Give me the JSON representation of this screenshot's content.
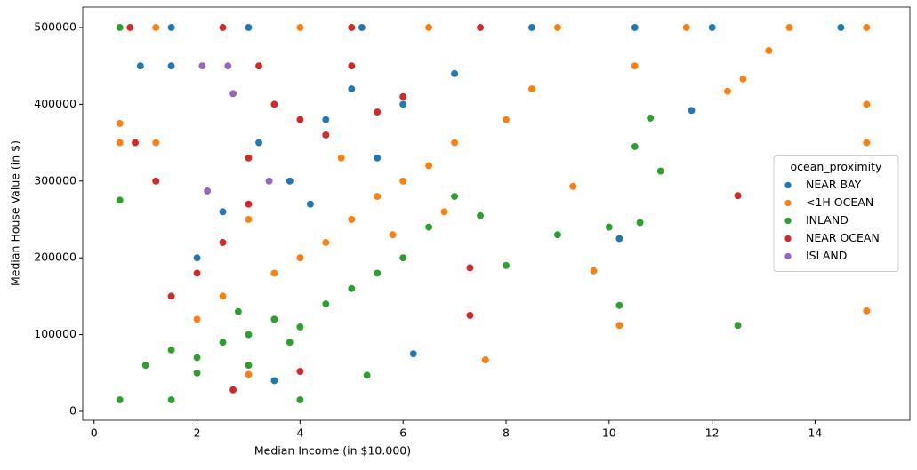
{
  "chart_data": {
    "type": "scatter",
    "x_label": "Median Income (in $10.000)",
    "y_label": "Median House Value (in $)",
    "xlim": [
      -0.22,
      15.84
    ],
    "ylim": [
      -11600,
      526600
    ],
    "xticks": [
      0,
      2,
      4,
      6,
      8,
      10,
      12,
      14
    ],
    "yticks": [
      0,
      100000,
      200000,
      300000,
      400000,
      500000
    ],
    "legend_title": "ocean_proximity",
    "legend_loc": "center right",
    "series": [
      {
        "name": "NEAR BAY",
        "color": "#1f77b4",
        "x": [
          1.5,
          3.0,
          5.2,
          7.5,
          10.5,
          12.0,
          14.5,
          8.5,
          3.2,
          4.5,
          5.0,
          2.5,
          6.0,
          3.8,
          10.2,
          11.6,
          1.5,
          6.2,
          3.5,
          4.2,
          2.0,
          5.5,
          7.0,
          0.9
        ],
        "values": [
          500001,
          500001,
          500001,
          500001,
          500001,
          500001,
          500001,
          500001,
          350000,
          380000,
          420000,
          260000,
          400000,
          300000,
          225000,
          392000,
          450000,
          75000,
          40000,
          270000,
          200000,
          330000,
          440000,
          450000
        ]
      },
      {
        "name": "<1H OCEAN",
        "color": "#ff7f0e",
        "x": [
          1.2,
          4.0,
          6.5,
          9.0,
          11.5,
          13.5,
          15.0,
          0.5,
          0.5,
          1.2,
          15.0,
          15.0,
          15.0,
          13.1,
          12.3,
          12.6,
          10.2,
          9.7,
          7.6,
          5.0,
          5.5,
          6.0,
          4.5,
          4.0,
          3.5,
          7.0,
          8.0,
          6.5,
          5.8,
          3.0,
          2.5,
          2.0,
          9.3,
          10.5,
          4.8,
          6.8,
          3.0,
          8.5
        ],
        "values": [
          500001,
          500001,
          500001,
          500001,
          500001,
          500001,
          500001,
          350000,
          375000,
          350000,
          400000,
          350000,
          131000,
          470000,
          417000,
          433000,
          112000,
          183000,
          67000,
          250000,
          280000,
          300000,
          220000,
          200000,
          180000,
          350000,
          380000,
          320000,
          230000,
          250000,
          150000,
          120000,
          293000,
          450000,
          330000,
          260000,
          48000,
          420000
        ]
      },
      {
        "name": "INLAND",
        "color": "#2ca02c",
        "x": [
          0.5,
          0.5,
          0.5,
          1.0,
          1.5,
          2.0,
          2.5,
          3.0,
          3.5,
          4.0,
          4.5,
          5.0,
          5.5,
          6.0,
          2.0,
          3.0,
          1.5,
          4.0,
          11.0,
          12.5,
          10.2,
          10.0,
          10.6,
          9.0,
          7.5,
          8.0,
          6.5,
          10.8,
          10.5,
          7.0,
          5.3,
          3.8,
          2.8
        ],
        "values": [
          500001,
          275000,
          15000,
          60000,
          80000,
          70000,
          90000,
          100000,
          120000,
          110000,
          140000,
          160000,
          180000,
          200000,
          50000,
          60000,
          15000,
          15000,
          313000,
          112000,
          138000,
          240000,
          246000,
          230000,
          255000,
          190000,
          240000,
          382000,
          345000,
          280000,
          47000,
          90000,
          130000
        ]
      },
      {
        "name": "NEAR OCEAN",
        "color": "#d62728",
        "x": [
          0.7,
          2.5,
          5.0,
          7.5,
          12.5,
          7.3,
          1.2,
          3.0,
          3.5,
          4.0,
          4.5,
          2.5,
          2.0,
          5.0,
          3.0,
          2.7,
          4.0,
          1.5,
          6.0,
          7.3,
          0.8,
          5.5,
          3.2
        ],
        "values": [
          500001,
          500001,
          500001,
          500001,
          281000,
          125000,
          300000,
          330000,
          400000,
          380000,
          360000,
          220000,
          180000,
          450000,
          270000,
          28000,
          52000,
          150000,
          410000,
          187000,
          350000,
          390000,
          450000
        ]
      },
      {
        "name": "ISLAND",
        "color": "#9467bd",
        "x": [
          2.7,
          2.6,
          2.2,
          3.4,
          2.1
        ],
        "values": [
          414000,
          450000,
          287000,
          300000,
          450000
        ]
      }
    ]
  }
}
